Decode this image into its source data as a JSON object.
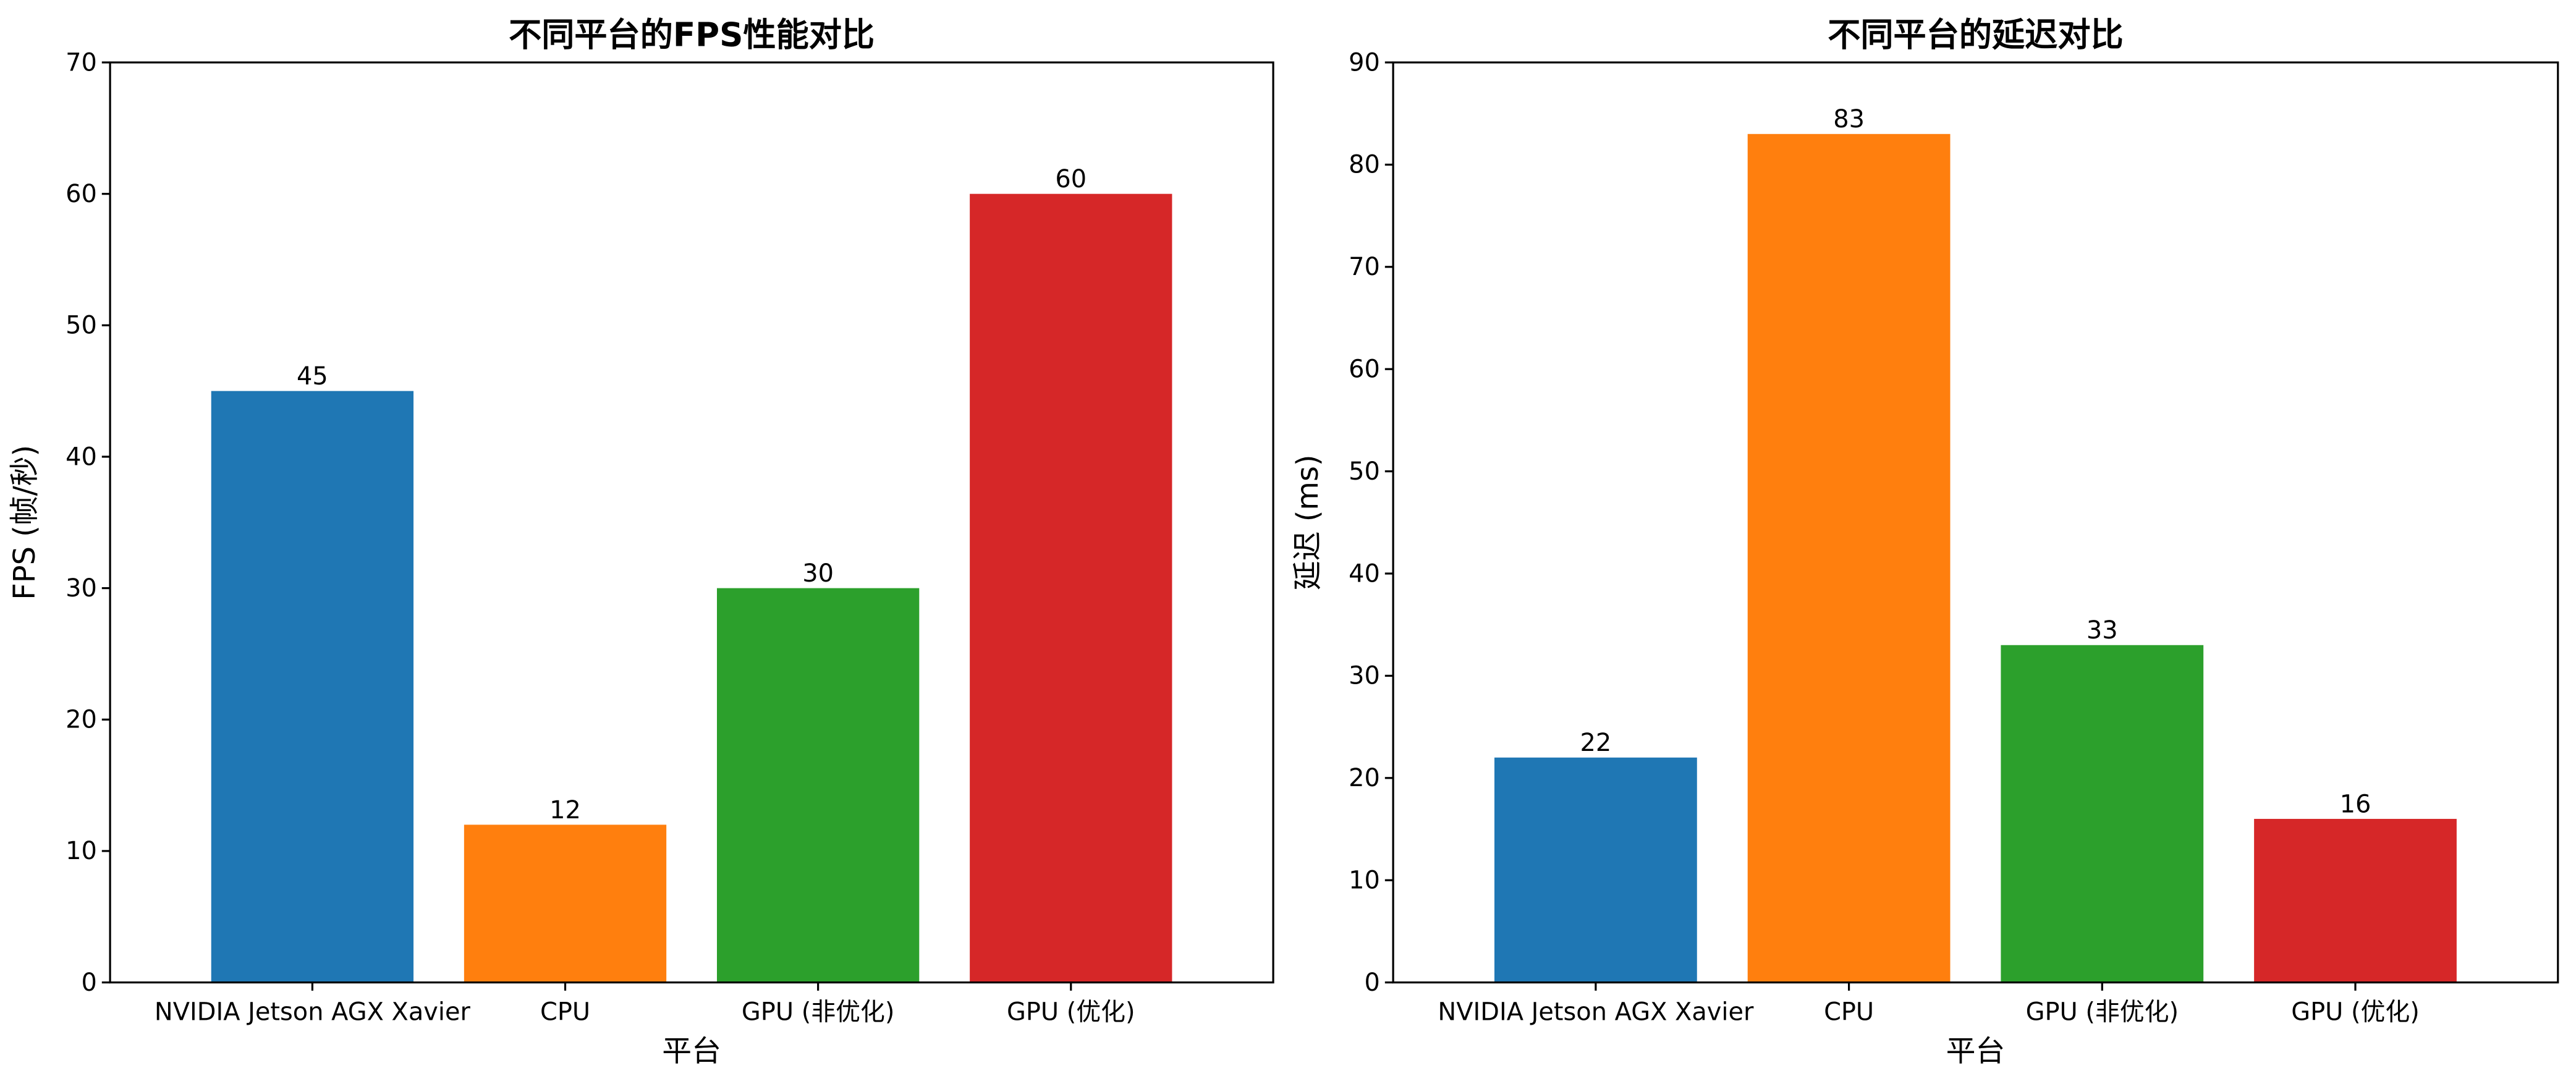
{
  "chart_data": [
    {
      "type": "bar",
      "title": "不同平台的FPS性能对比",
      "xlabel": "平台",
      "ylabel": "FPS (帧/秒)",
      "categories": [
        "NVIDIA Jetson AGX Xavier",
        "CPU",
        "GPU (非优化)",
        "GPU (优化)"
      ],
      "values": [
        45,
        12,
        30,
        60
      ],
      "colors": [
        "#1f77b4",
        "#ff7f0e",
        "#2ca02c",
        "#d62728"
      ],
      "ylim": [
        0,
        70
      ],
      "yticks": [
        0,
        10,
        20,
        30,
        40,
        50,
        60,
        70
      ],
      "grid": false,
      "data_labels": true
    },
    {
      "type": "bar",
      "title": "不同平台的延迟对比",
      "xlabel": "平台",
      "ylabel": "延迟 (ms)",
      "categories": [
        "NVIDIA Jetson AGX Xavier",
        "CPU",
        "GPU (非优化)",
        "GPU (优化)"
      ],
      "values": [
        22,
        83,
        33,
        16
      ],
      "colors": [
        "#1f77b4",
        "#ff7f0e",
        "#2ca02c",
        "#d62728"
      ],
      "ylim": [
        0,
        90
      ],
      "yticks": [
        0,
        10,
        20,
        30,
        40,
        50,
        60,
        70,
        80,
        90
      ],
      "grid": false,
      "data_labels": true
    }
  ]
}
